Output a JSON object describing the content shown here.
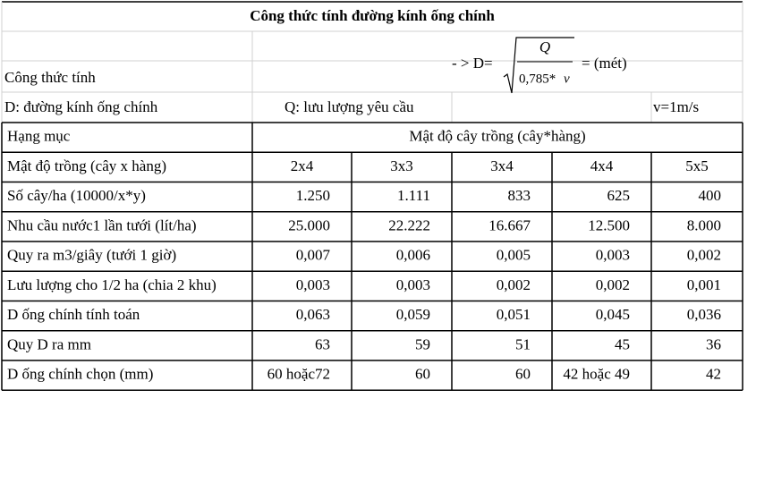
{
  "title": "Công thức tính đường kính ống chính",
  "formula_label": "Công thức tính",
  "formula": {
    "prefix": "- > D=",
    "numerator": "Q",
    "denominator": "0,785*",
    "variable": "v",
    "suffix": "= (mét)"
  },
  "definitions": [
    "D: đường kính ống chính",
    "Q: lưu lượng yêu cầu",
    "v=1m/s"
  ],
  "table": {
    "header": [
      "Hạng mục",
      "Mật độ cây trồng (cây*hàng)"
    ],
    "rows": [
      [
        "Mật độ trồng (cây x hàng)",
        "2x4",
        "3x3",
        "3x4",
        "4x4",
        "5x5"
      ],
      [
        "Số cây/ha (10000/x*y)",
        "1.250",
        "1.111",
        "833",
        "625",
        "400"
      ],
      [
        "Nhu cầu nước1 lần tưới  (lít/ha)",
        "25.000",
        "22.222",
        "16.667",
        "12.500",
        "8.000"
      ],
      [
        "Quy ra m3/giây (tưới 1 giờ)",
        "0,007",
        "0,006",
        "0,005",
        "0,003",
        "0,002"
      ],
      [
        "Lưu lượng cho 1/2 ha (chia 2 khu)",
        "0,003",
        "0,003",
        "0,002",
        "0,002",
        "0,001"
      ],
      [
        "D ống chính tính toán",
        "0,063",
        "0,059",
        "0,051",
        "0,045",
        "0,036"
      ],
      [
        "Quy D ra mm",
        "63",
        "59",
        "51",
        "45",
        "36"
      ],
      [
        "D ống chính chọn (mm)",
        "60 hoặc72",
        "60",
        "60",
        "42 hoặc 49",
        "42"
      ]
    ]
  }
}
